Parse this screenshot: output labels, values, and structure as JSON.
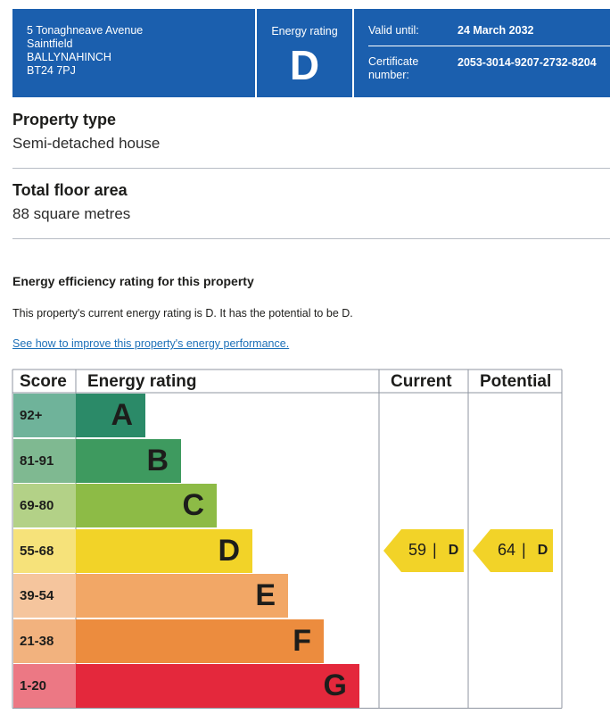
{
  "header": {
    "address_lines": [
      "5 Tonaghneave Avenue",
      "Saintfield",
      "BALLYNAHINCH",
      "BT24 7PJ"
    ],
    "energy_rating_label": "Energy rating",
    "energy_rating": "D",
    "valid_until_label": "Valid until:",
    "valid_until": "24 March 2032",
    "certificate_label": "Certificate number:",
    "certificate_number": "2053-3014-9207-2732-8204"
  },
  "property": {
    "type_heading": "Property type",
    "type_value": "Semi-detached house",
    "area_heading": "Total floor area",
    "area_value": "88 square metres"
  },
  "efficiency": {
    "title": "Energy efficiency rating for this property",
    "summary": "This property's current energy rating is D. It has the potential to be D.",
    "link_text": "See how to improve this property's energy performance."
  },
  "colors": {
    "header_blue": "#1b5fae",
    "band_A": "#2b8a68",
    "band_B": "#3e9a5f",
    "band_C": "#8dbb46",
    "band_D": "#f2d328",
    "band_E": "#f2a766",
    "band_F": "#ec8c3e",
    "band_G": "#e4283c",
    "marker": "#f2d328"
  },
  "chart_data": {
    "type": "table",
    "columns": [
      "Score",
      "Energy rating",
      "Current",
      "Potential"
    ],
    "bands": [
      {
        "score": "92+",
        "letter": "A"
      },
      {
        "score": "81-91",
        "letter": "B"
      },
      {
        "score": "69-80",
        "letter": "C"
      },
      {
        "score": "55-68",
        "letter": "D"
      },
      {
        "score": "39-54",
        "letter": "E"
      },
      {
        "score": "21-38",
        "letter": "F"
      },
      {
        "score": "1-20",
        "letter": "G"
      }
    ],
    "current": {
      "score": "59",
      "letter": "D",
      "separator": "|"
    },
    "potential": {
      "score": "64",
      "letter": "D",
      "separator": "|"
    }
  }
}
